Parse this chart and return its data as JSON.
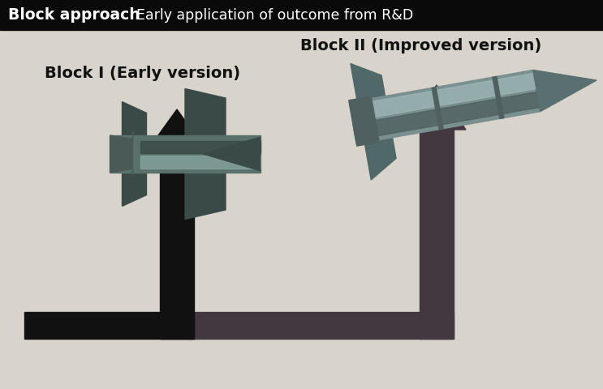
{
  "title_bold": "Block approach",
  "title_regular": "Early application of outcome from R&D",
  "label_block1": "Block I (Early version)",
  "label_block2": "Block II (Improved version)",
  "bg_color": "#d8d4cc",
  "header_bg": "#0a0a0a",
  "header_text_color": "#ffffff",
  "label_color": "#111111",
  "arrow1_color": "#111111",
  "arrow2_color": "#433840",
  "fig_width": 7.43,
  "fig_height": 4.81,
  "dpi": 100
}
